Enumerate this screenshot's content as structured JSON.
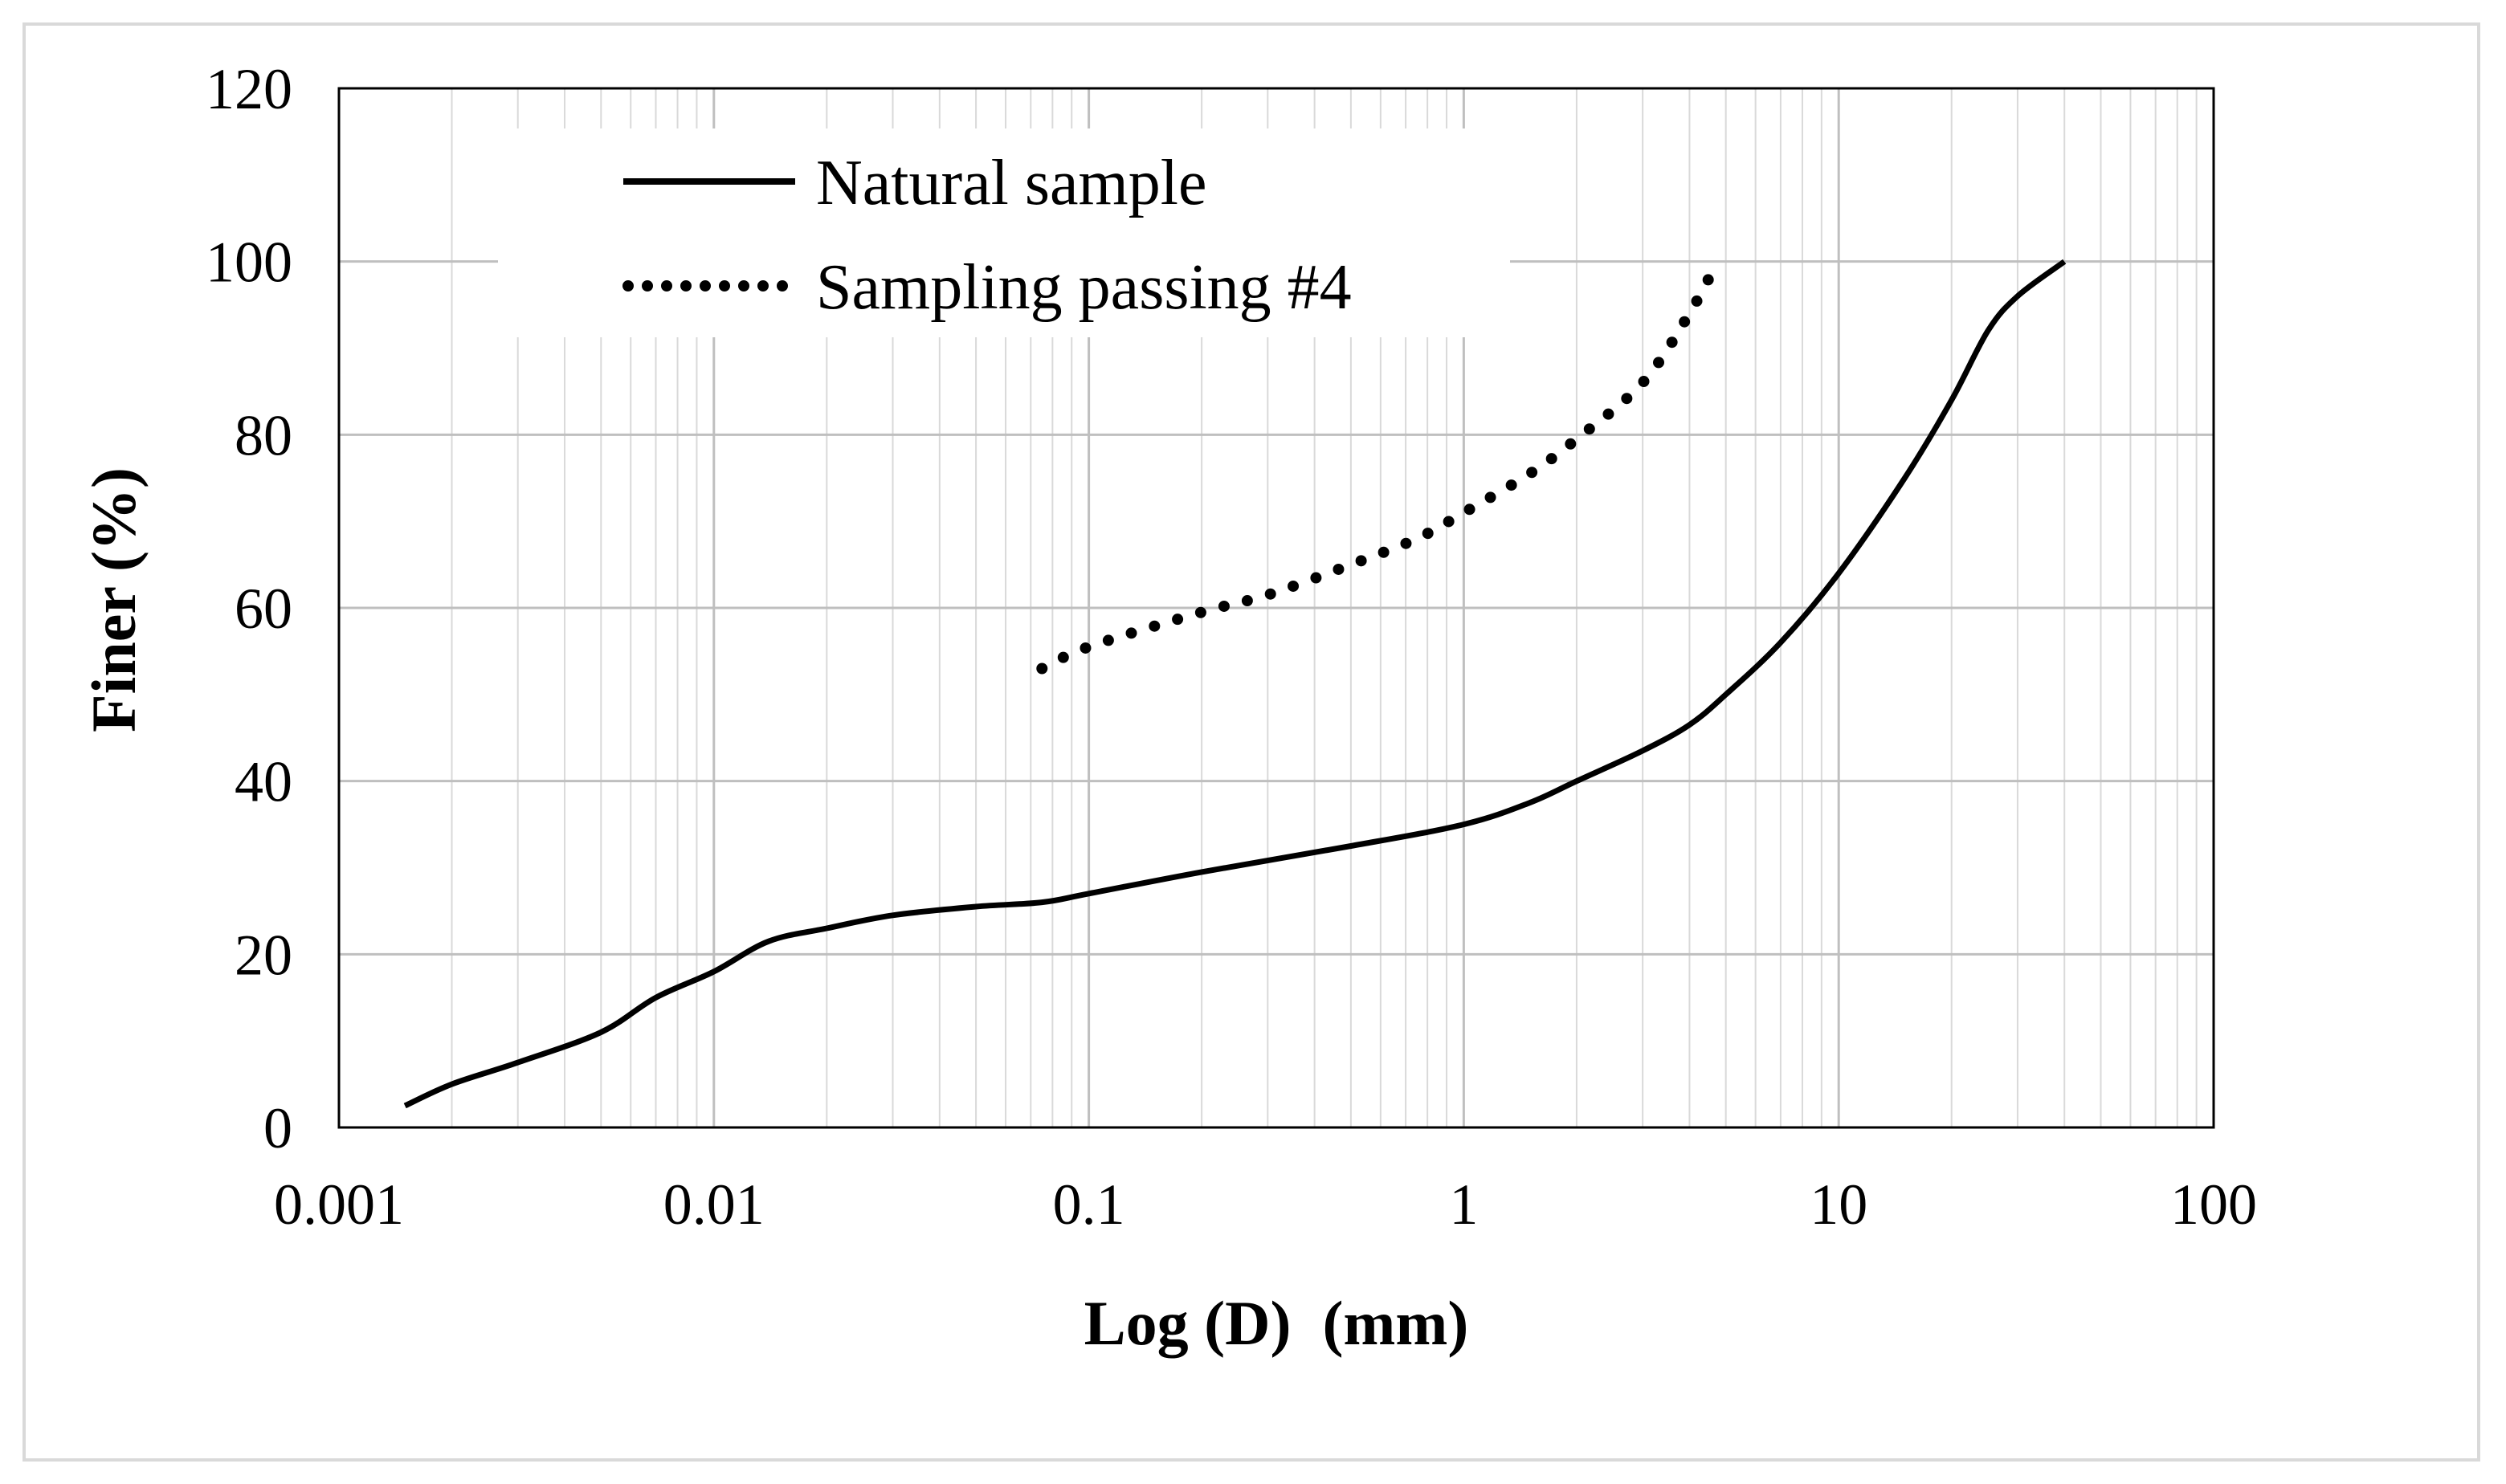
{
  "chart_data": {
    "type": "line",
    "title": "",
    "xlabel": "Log (D)  (mm)",
    "ylabel": "Finer (%)",
    "xscale": "log",
    "xlim": [
      0.001,
      100
    ],
    "ylim": [
      0,
      120
    ],
    "x_ticks": [
      0.001,
      0.01,
      0.1,
      1,
      10,
      100
    ],
    "x_tick_labels": [
      "0.001",
      "0.01",
      "0.1",
      "1",
      "10",
      "100"
    ],
    "y_ticks": [
      0,
      20,
      40,
      60,
      80,
      100,
      120
    ],
    "y_tick_labels": [
      "0",
      "20",
      "40",
      "60",
      "80",
      "100",
      "120"
    ],
    "grid": true,
    "legend_position": "top-left",
    "series": [
      {
        "name": "Natural sample",
        "style": "solid",
        "color": "#000000",
        "x": [
          0.0015,
          0.002,
          0.003,
          0.005,
          0.007,
          0.01,
          0.014,
          0.02,
          0.03,
          0.05,
          0.075,
          0.1,
          0.2,
          0.5,
          1,
          1.5,
          2,
          3,
          4,
          5,
          7,
          10,
          15,
          20,
          25,
          30,
          40
        ],
        "y": [
          2.5,
          5,
          7.5,
          11,
          15,
          18,
          21.5,
          23,
          24.5,
          25.5,
          26,
          27,
          29.5,
          32.5,
          35,
          37.5,
          40,
          43.5,
          46.5,
          50,
          56,
          64,
          75,
          84,
          92,
          96,
          100
        ]
      },
      {
        "name": "Sampling passing #4",
        "style": "dotted",
        "color": "#000000",
        "x": [
          0.075,
          0.1,
          0.2,
          0.3,
          0.5,
          0.75,
          1,
          1.5,
          2,
          3,
          4,
          4.75
        ],
        "y": [
          53,
          55.5,
          59.5,
          61.5,
          65,
          68,
          71,
          75.5,
          79.5,
          86,
          94,
          100
        ]
      }
    ]
  }
}
